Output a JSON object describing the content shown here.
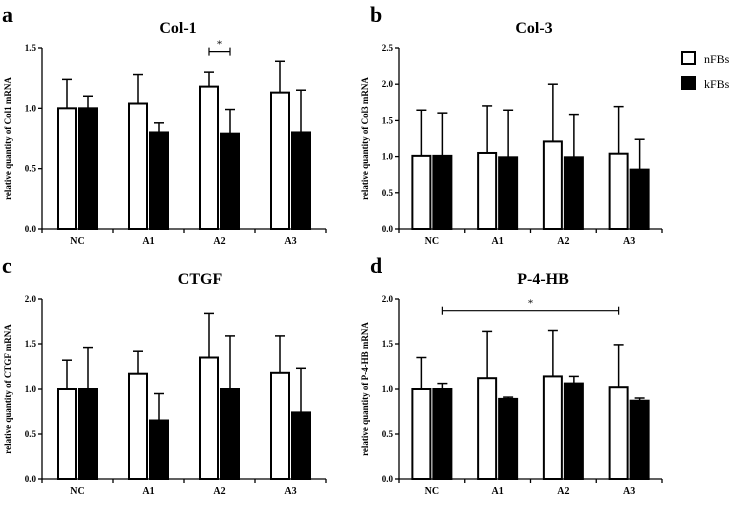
{
  "legend": {
    "items": [
      {
        "label": "nFBs",
        "fill": "#ffffff"
      },
      {
        "label": "kFBs",
        "fill": "#000000"
      }
    ]
  },
  "chart_data": [
    {
      "type": "bar",
      "panel_letter": "a",
      "title": "Col-1",
      "ylabel": "relative quantity of Col1 mRNA",
      "categories": [
        "NC",
        "A1",
        "A2",
        "A3"
      ],
      "ylim": [
        0,
        1.5
      ],
      "yticks": [
        0,
        0.5,
        1.0,
        1.5
      ],
      "ytick_labels": [
        "0.0",
        "0.5",
        "1.0",
        "1.5"
      ],
      "series": [
        {
          "name": "nFBs",
          "values": [
            1.0,
            1.04,
            1.18,
            1.13
          ],
          "errors": [
            0.24,
            0.24,
            0.12,
            0.26
          ]
        },
        {
          "name": "kFBs",
          "values": [
            1.0,
            0.8,
            0.79,
            0.8
          ],
          "errors": [
            0.1,
            0.08,
            0.2,
            0.35
          ]
        }
      ],
      "significance": [
        {
          "label": "*",
          "from": [
            2,
            0
          ],
          "to": [
            2,
            1
          ],
          "y": 1.47
        }
      ]
    },
    {
      "type": "bar",
      "panel_letter": "b",
      "title": "Col-3",
      "ylabel": "relative quantity of Col3 mRNA",
      "categories": [
        "NC",
        "A1",
        "A2",
        "A3"
      ],
      "ylim": [
        0,
        2.5
      ],
      "yticks": [
        0,
        0.5,
        1.0,
        1.5,
        2.0,
        2.5
      ],
      "ytick_labels": [
        "0.0",
        "0.5",
        "1.0",
        "1.5",
        "2.0",
        "2.5"
      ],
      "series": [
        {
          "name": "nFBs",
          "values": [
            1.01,
            1.05,
            1.21,
            1.04
          ],
          "errors": [
            0.63,
            0.65,
            0.79,
            0.65
          ]
        },
        {
          "name": "kFBs",
          "values": [
            1.01,
            0.99,
            0.99,
            0.82
          ],
          "errors": [
            0.59,
            0.65,
            0.59,
            0.42
          ]
        }
      ],
      "significance": []
    },
    {
      "type": "bar",
      "panel_letter": "c",
      "title": "CTGF",
      "ylabel": "relative quantity of CTGF mRNA",
      "categories": [
        "NC",
        "A1",
        "A2",
        "A3"
      ],
      "ylim": [
        0,
        2.0
      ],
      "yticks": [
        0,
        0.5,
        1.0,
        1.5,
        2.0
      ],
      "ytick_labels": [
        "0.0",
        "0.5",
        "1.0",
        "1.5",
        "2.0"
      ],
      "series": [
        {
          "name": "nFBs",
          "values": [
            1.0,
            1.17,
            1.35,
            1.18
          ],
          "errors": [
            0.32,
            0.25,
            0.49,
            0.41
          ]
        },
        {
          "name": "kFBs",
          "values": [
            1.0,
            0.65,
            1.0,
            0.74
          ],
          "errors": [
            0.46,
            0.3,
            0.59,
            0.49
          ]
        }
      ],
      "significance": []
    },
    {
      "type": "bar",
      "panel_letter": "d",
      "title": "P-4-HB",
      "ylabel": "relative quantity of P-4-HB mRNA",
      "categories": [
        "NC",
        "A1",
        "A2",
        "A3"
      ],
      "ylim": [
        0,
        2.0
      ],
      "yticks": [
        0,
        0.5,
        1.0,
        1.5,
        2.0
      ],
      "ytick_labels": [
        "0.0",
        "0.5",
        "1.0",
        "1.5",
        "2.0"
      ],
      "series": [
        {
          "name": "nFBs",
          "values": [
            1.0,
            1.12,
            1.14,
            1.02
          ],
          "errors": [
            0.35,
            0.52,
            0.51,
            0.47
          ]
        },
        {
          "name": "kFBs",
          "values": [
            1.0,
            0.89,
            1.06,
            0.87
          ],
          "errors": [
            0.06,
            0.02,
            0.08,
            0.03
          ]
        }
      ],
      "significance": [
        {
          "label": "*",
          "from": [
            0,
            1
          ],
          "to": [
            3,
            0
          ],
          "y": 1.87
        }
      ]
    }
  ]
}
